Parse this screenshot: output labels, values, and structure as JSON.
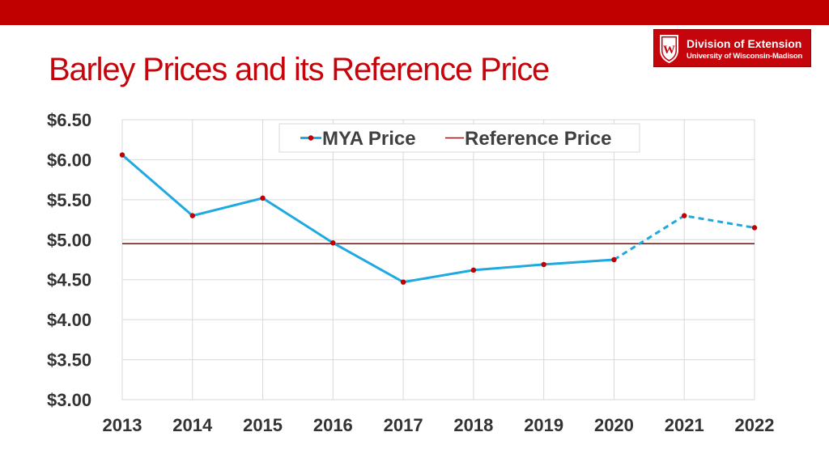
{
  "header": {
    "title": "Barley Prices and its Reference Price",
    "logo_line1": "Division of Extension",
    "logo_line2": "University of Wisconsin-Madison",
    "logo_letter": "W"
  },
  "colors": {
    "top_bar": "#c00000",
    "title": "#c5050c",
    "mya_line": "#1fa9e1",
    "mya_marker": "#c00000",
    "reference_line": "#8b1a1a"
  },
  "chart_data": {
    "type": "line",
    "title": "",
    "xlabel": "",
    "ylabel": "",
    "categories": [
      "2013",
      "2014",
      "2015",
      "2016",
      "2017",
      "2018",
      "2019",
      "2020",
      "2021",
      "2022"
    ],
    "ylim": [
      3.0,
      6.5
    ],
    "yticks": [
      3.0,
      3.5,
      4.0,
      4.5,
      5.0,
      5.5,
      6.0,
      6.5
    ],
    "ytick_labels": [
      "$3.00",
      "$3.50",
      "$4.00",
      "$4.50",
      "$5.00",
      "$5.50",
      "$6.00",
      "$6.50"
    ],
    "grid": true,
    "legend_position": "top-center",
    "series": [
      {
        "name": "MYA Price",
        "values": [
          6.06,
          5.3,
          5.52,
          4.96,
          4.47,
          4.62,
          4.69,
          4.75,
          5.3,
          5.15
        ],
        "dashed_from_index": 7
      },
      {
        "name": "Reference Price",
        "values": [
          4.95,
          4.95,
          4.95,
          4.95,
          4.95,
          4.95,
          4.95,
          4.95,
          4.95,
          4.95
        ]
      }
    ]
  }
}
